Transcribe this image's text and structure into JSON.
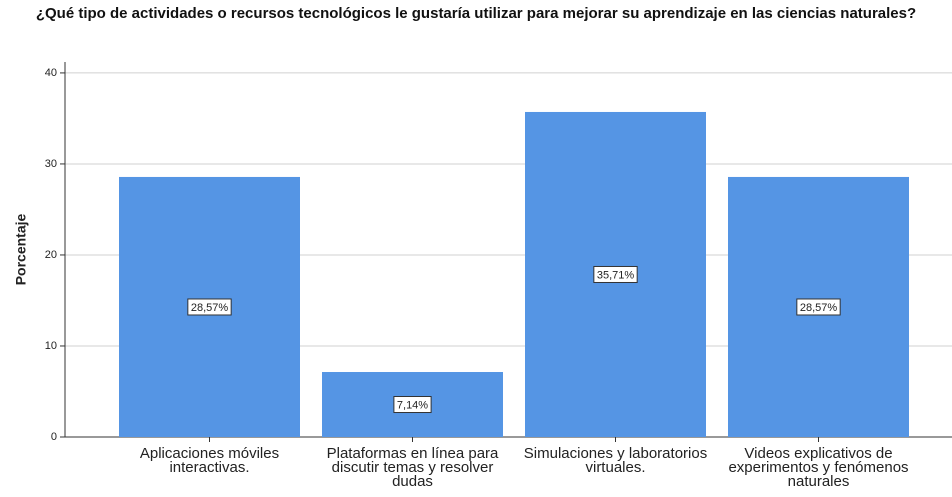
{
  "chart_data": {
    "type": "bar",
    "title": "¿Qué tipo de actividades o recursos tecnológicos le gustaría utilizar para mejorar su aprendizaje en las ciencias naturales?",
    "y_label": "Porcentaje",
    "categories": [
      "Aplicaciones móviles interactivas.",
      "Plataformas en línea para discutir temas y resolver dudas",
      "Simulaciones y laboratorios virtuales.",
      "Videos explicativos de experimentos y fenómenos naturales"
    ],
    "values": [
      28.57,
      7.14,
      35.71,
      28.57
    ],
    "value_labels": [
      "28,57%",
      "7,14%",
      "35,71%",
      "28,57%"
    ],
    "color": "#5595e4",
    "ylim": [
      0,
      41.2
    ],
    "yticks": [
      0,
      10,
      20,
      30,
      40
    ],
    "grid": true
  }
}
